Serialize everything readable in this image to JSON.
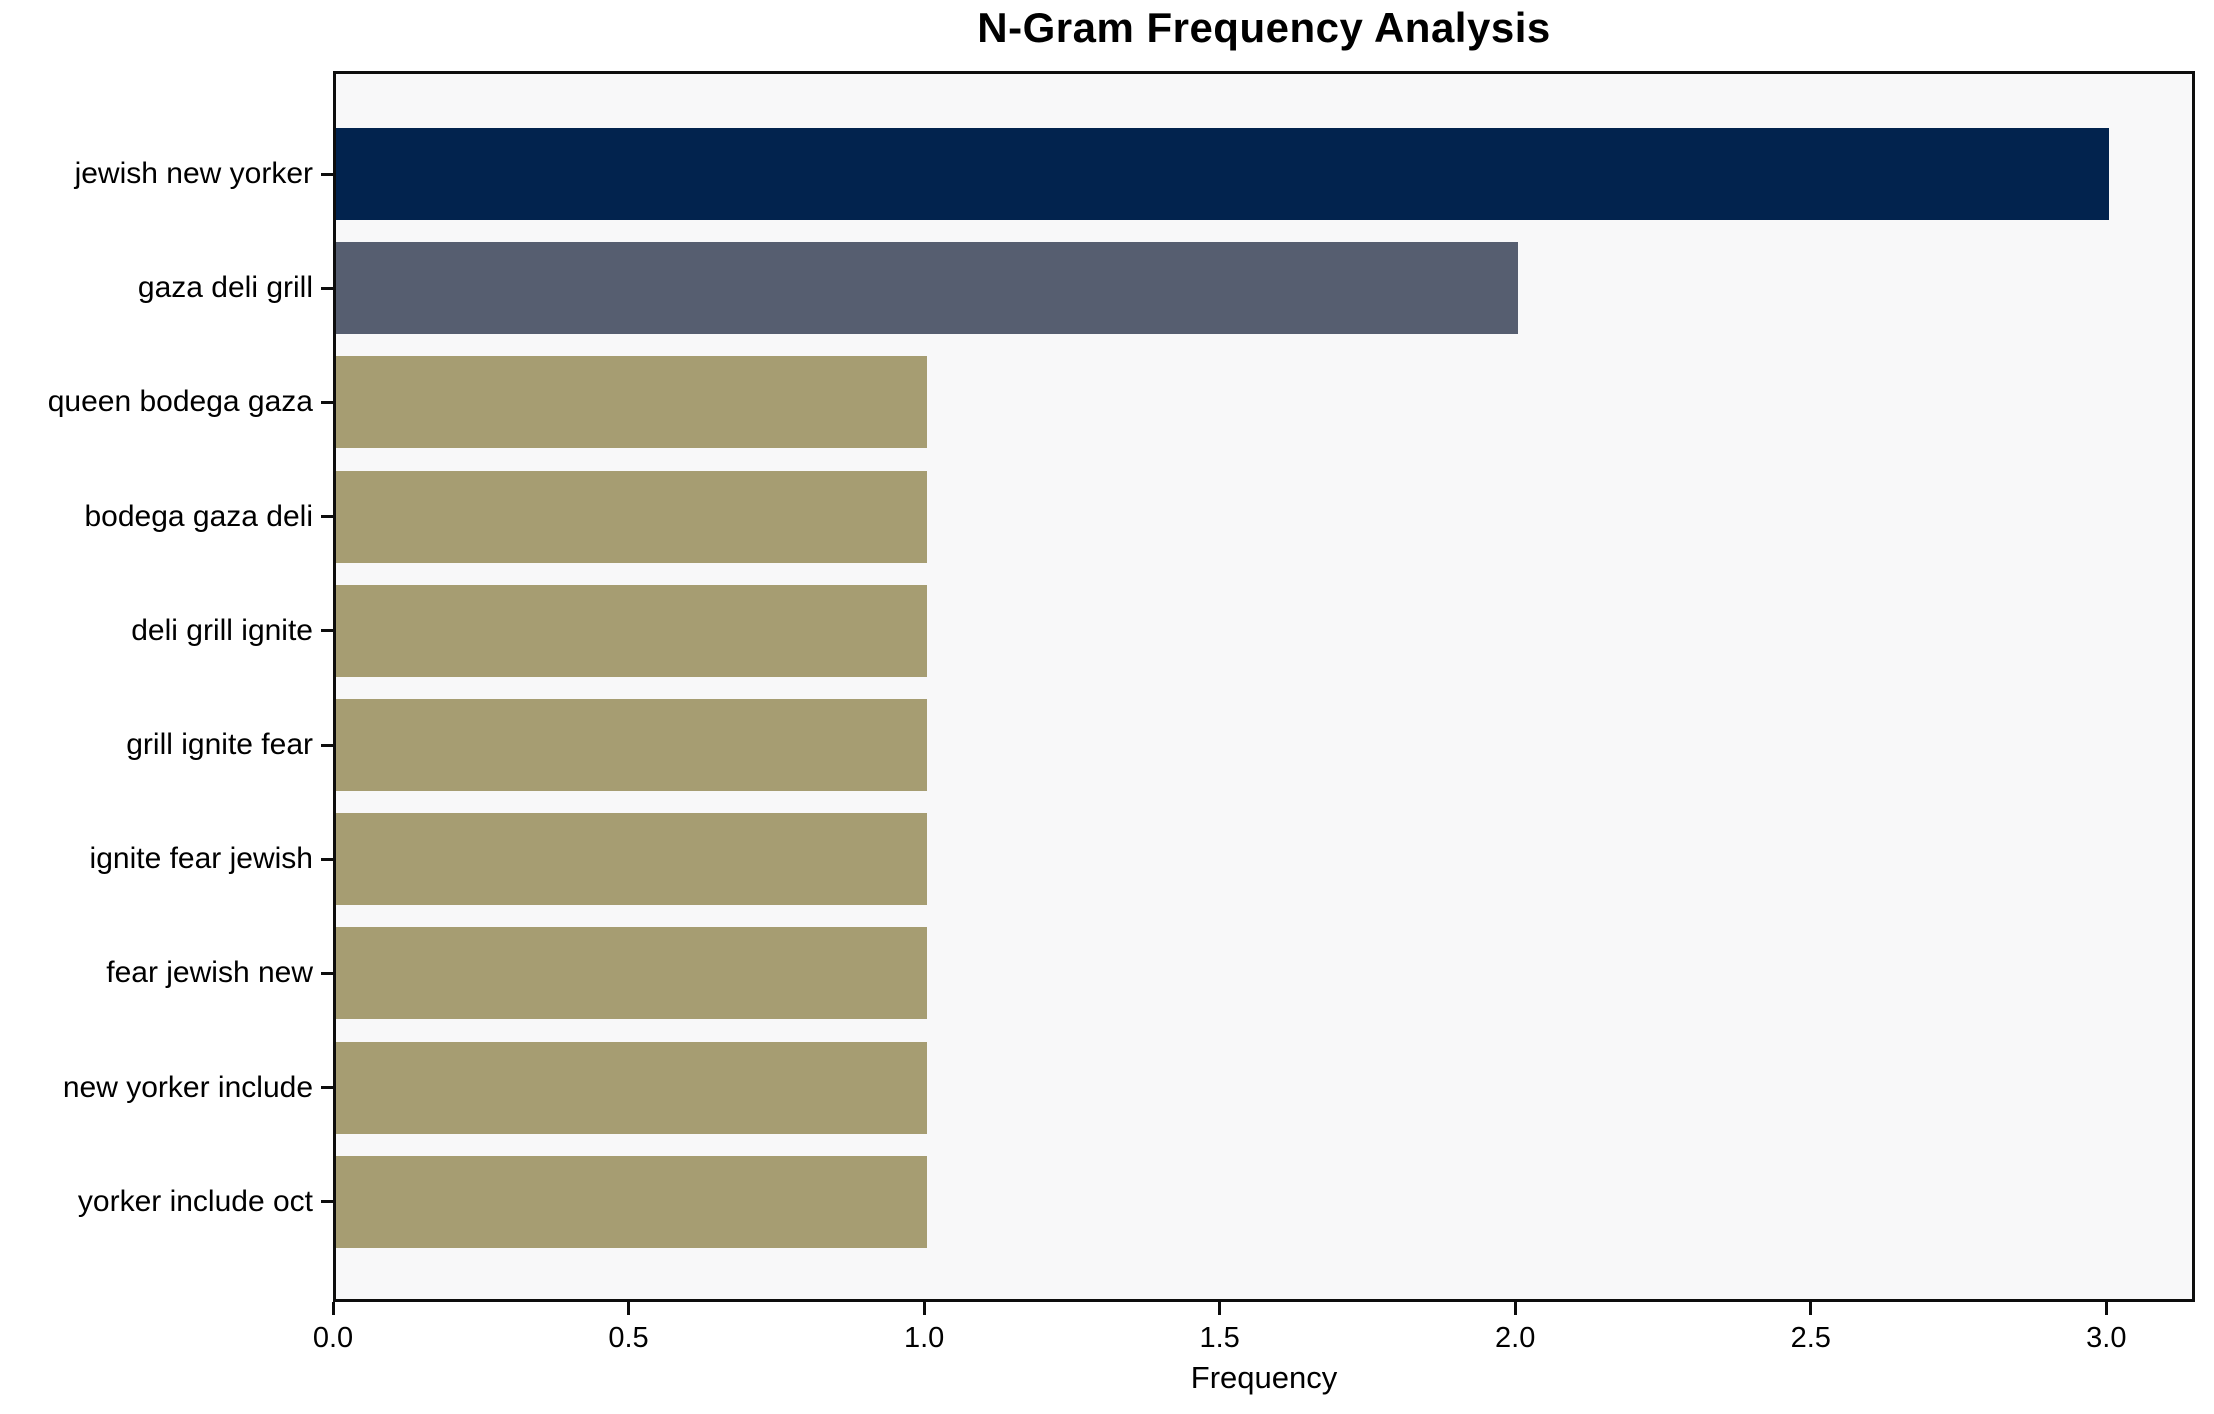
{
  "chart_data": {
    "type": "bar",
    "orientation": "horizontal",
    "title": "N-Gram Frequency Analysis",
    "xlabel": "Frequency",
    "ylabel": "",
    "categories": [
      "jewish new yorker",
      "gaza deli grill",
      "queen bodega gaza",
      "bodega gaza deli",
      "deli grill ignite",
      "grill ignite fear",
      "ignite fear jewish",
      "fear jewish new",
      "new yorker include",
      "yorker include oct"
    ],
    "values": [
      3,
      2,
      1,
      1,
      1,
      1,
      1,
      1,
      1,
      1
    ],
    "bar_colors": [
      "#02234e",
      "#565e70",
      "#a69d72",
      "#a69d72",
      "#a69d72",
      "#a69d72",
      "#a69d72",
      "#a69d72",
      "#a69d72",
      "#a69d72"
    ],
    "xlim": [
      0,
      3.15
    ],
    "xticks": [
      "0.0",
      "0.5",
      "1.0",
      "1.5",
      "2.0",
      "2.5",
      "3.0"
    ],
    "grid": false,
    "legend": false,
    "plot_background": "#f8f8f9",
    "figure_background": "#ffffff"
  }
}
